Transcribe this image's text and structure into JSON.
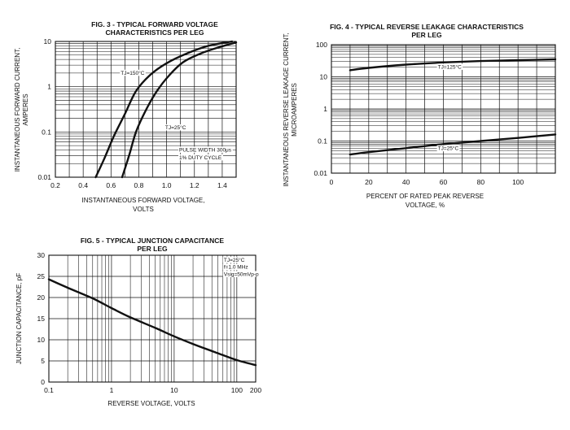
{
  "chart_data": [
    {
      "id": "fig3",
      "type": "line",
      "title": "FIG. 3 - TYPICAL FORWARD VOLTAGE",
      "subtitle": "CHARACTERISTICS PER LEG",
      "xlabel": "INSTANTANEOUS FORWARD VOLTAGE,",
      "xlabel2": "VOLTS",
      "ylabel": "INSTANTANEOUS FORWARD CURRENT,",
      "ylabel2": "AMPERES",
      "xscale": "linear",
      "yscale": "log",
      "xlim": [
        0.2,
        1.5
      ],
      "ylim": [
        0.01,
        10
      ],
      "xticks": [
        0.2,
        0.4,
        0.6,
        0.8,
        1.0,
        1.2,
        1.4
      ],
      "xtick_labels": [
        "0.2",
        "0.4",
        "0.6",
        "0.8",
        "1.0",
        "1.2",
        "1.4"
      ],
      "yticks": [
        0.01,
        0.1,
        1,
        10
      ],
      "ytick_labels": [
        "0.01",
        "0.1",
        "1",
        "10"
      ],
      "grid": true,
      "annotations": [
        {
          "text": "TJ=150°C",
          "x": 0.67,
          "y": 1.85
        },
        {
          "text": "TJ=25°C",
          "x": 0.99,
          "y": 0.115
        },
        {
          "text": "PULSE WIDTH 300μs",
          "x": 1.09,
          "y": 0.037
        },
        {
          "text": "1% DUTY CYCLE",
          "x": 1.09,
          "y": 0.025
        }
      ],
      "series": [
        {
          "name": "TJ=150°C",
          "x": [
            0.49,
            0.55,
            0.62,
            0.7,
            0.78,
            0.88,
            1.0,
            1.15,
            1.3,
            1.47
          ],
          "y": [
            0.01,
            0.025,
            0.08,
            0.25,
            0.8,
            1.8,
            3.3,
            5.5,
            8.0,
            10
          ]
        },
        {
          "name": "TJ=25°C",
          "x": [
            0.68,
            0.73,
            0.78,
            0.85,
            0.93,
            1.02,
            1.12,
            1.25,
            1.38,
            1.5
          ],
          "y": [
            0.01,
            0.03,
            0.1,
            0.3,
            0.8,
            1.8,
            3.5,
            5.5,
            7.5,
            9.5
          ]
        }
      ]
    },
    {
      "id": "fig4",
      "type": "line",
      "title": "FIG. 4 - TYPICAL REVERSE LEAKAGE CHARACTERISTICS",
      "subtitle": "PER LEG",
      "xlabel": "PERCENT OF RATED PEAK REVERSE",
      "xlabel2": "VOLTAGE, %",
      "ylabel": "INSTANTANEOUS REVERSE LEAKAGE CURRENT,",
      "ylabel2": "MICROAMPERES",
      "xscale": "linear",
      "yscale": "log",
      "xlim": [
        0,
        120
      ],
      "ylim": [
        0.01,
        100
      ],
      "xticks": [
        0,
        20,
        40,
        60,
        80,
        100
      ],
      "xtick_labels": [
        "0",
        "20",
        "40",
        "60",
        "80",
        "100"
      ],
      "yticks": [
        0.01,
        0.1,
        1,
        10,
        100
      ],
      "ytick_labels": [
        "0.01",
        "0.1",
        "1",
        "10",
        "100"
      ],
      "grid": true,
      "annotations": [
        {
          "text": "TJ=125°C",
          "x": 57,
          "y": 18
        },
        {
          "text": "TJ=25°C",
          "x": 57,
          "y": 0.052
        }
      ],
      "series": [
        {
          "name": "TJ=125°C",
          "x": [
            10,
            20,
            40,
            60,
            80,
            100,
            120
          ],
          "y": [
            16,
            19,
            24,
            28,
            31,
            33,
            35
          ]
        },
        {
          "name": "TJ=25°C",
          "x": [
            10,
            20,
            40,
            60,
            80,
            100,
            120
          ],
          "y": [
            0.038,
            0.045,
            0.06,
            0.08,
            0.1,
            0.125,
            0.16
          ]
        }
      ]
    },
    {
      "id": "fig5",
      "type": "line",
      "title": "FIG. 5 - TYPICAL JUNCTION CAPACITANCE",
      "subtitle": "PER LEG",
      "xlabel": "REVERSE VOLTAGE, VOLTS",
      "xlabel2": "",
      "ylabel": "JUNCTION CAPACITANCE, pF",
      "ylabel2": "",
      "xscale": "log",
      "yscale": "linear",
      "xlim": [
        0.1,
        200
      ],
      "ylim": [
        0,
        30
      ],
      "xticks": [
        0.1,
        1,
        10,
        100,
        200
      ],
      "xtick_labels": [
        "0.1",
        "1",
        "10",
        "100",
        "200"
      ],
      "yticks": [
        0,
        5,
        10,
        15,
        20,
        25,
        30
      ],
      "ytick_labels": [
        "0",
        "5",
        "10",
        "15",
        "20",
        "25",
        "30"
      ],
      "grid": true,
      "annotations": [
        {
          "text": "TJ=25°C",
          "x": 62,
          "y": 28.5
        },
        {
          "text": "f=1.0 MHz",
          "x": 62,
          "y": 26.8
        },
        {
          "text": "Vsig=50mVp-p",
          "x": 62,
          "y": 25.1
        }
      ],
      "series": [
        {
          "name": "capacitance",
          "x": [
            0.1,
            0.2,
            0.5,
            1,
            2,
            5,
            10,
            20,
            50,
            100,
            200
          ],
          "y": [
            24.3,
            22.3,
            19.8,
            17.5,
            15.3,
            12.8,
            10.8,
            9.0,
            6.8,
            5.2,
            4.0
          ]
        }
      ]
    }
  ]
}
